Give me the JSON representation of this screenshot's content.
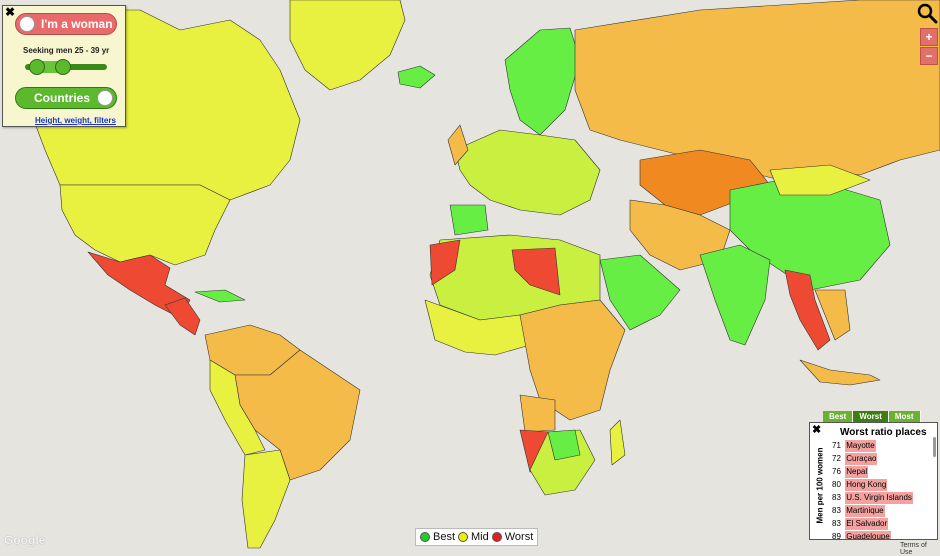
{
  "controls": {
    "gender_label": "I'm a woman",
    "seeking_label": "Seeking men 25 - 39 yr",
    "countries_label": "Countries",
    "filters_link": "Height, weight, filters",
    "close": "✖"
  },
  "zoom": {
    "in": "+",
    "out": "−"
  },
  "legend": {
    "best": "Best",
    "mid": "Mid",
    "worst": "Worst",
    "colors": {
      "best": "#22cc22",
      "mid": "#eeee00",
      "worst": "#dd2222"
    }
  },
  "ratio_panel": {
    "tabs": [
      "Best",
      "Worst",
      "Most"
    ],
    "active_tab": "Worst",
    "title": "Worst ratio places",
    "axis_label": "Men per 100 women",
    "close": "✖",
    "items": [
      {
        "value": "71",
        "name": "Mayotte"
      },
      {
        "value": "72",
        "name": "Curaçao"
      },
      {
        "value": "76",
        "name": "Nepal"
      },
      {
        "value": "80",
        "name": "Hong Kong"
      },
      {
        "value": "83",
        "name": "U.S. Virgin Islands"
      },
      {
        "value": "83",
        "name": "Martinique"
      },
      {
        "value": "83",
        "name": "El Salvador"
      },
      {
        "value": "89",
        "name": "Guadeloupe"
      }
    ]
  },
  "attribution": {
    "logo": "Google",
    "terms": "Terms of Use"
  },
  "palette": {
    "ocean": "#e6e4df",
    "best": "#66ee44",
    "mid": "#e8f040",
    "midlow": "#c9ef40",
    "orange": "#f5bb48",
    "darkorange": "#f08a20",
    "red": "#ee4a33"
  }
}
